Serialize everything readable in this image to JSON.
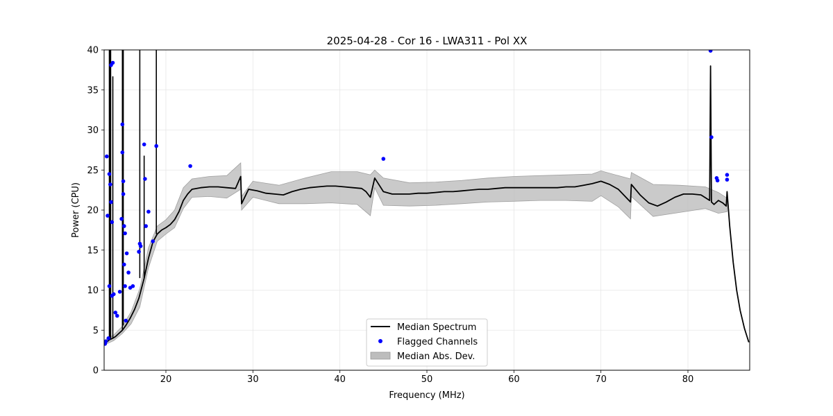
{
  "chart_data": {
    "type": "line",
    "title": "2025-04-28 - Cor 16 - LWA311 - Pol XX",
    "xlabel": "Frequency (MHz)",
    "ylabel": "Power (CPU)",
    "xlim": [
      12.9,
      87.1
    ],
    "ylim": [
      0,
      40
    ],
    "xticks": [
      20,
      30,
      40,
      50,
      60,
      70,
      80
    ],
    "yticks": [
      0,
      5,
      10,
      15,
      20,
      25,
      30,
      35,
      40
    ],
    "grid": true,
    "legend": {
      "placement": "lower-center",
      "entries": [
        {
          "label": "Median Spectrum",
          "kind": "line",
          "color": "#000000"
        },
        {
          "label": "Flagged Channels",
          "kind": "marker",
          "color": "#0000ff"
        },
        {
          "label": "Median Abs. Dev.",
          "kind": "patch",
          "color": "#bdbdbd"
        }
      ]
    },
    "series": [
      {
        "name": "Median Spectrum",
        "color": "#000000",
        "x": [
          13.0,
          13.3,
          13.5,
          13.7,
          13.9,
          14.2,
          14.6,
          15.0,
          15.4,
          15.9,
          16.4,
          16.9,
          17.5,
          18.0,
          18.5,
          19.0,
          19.5,
          20.0,
          20.5,
          21.0,
          21.5,
          22.0,
          22.5,
          23.0,
          24.0,
          25.0,
          26.0,
          27.0,
          28.0,
          28.6,
          28.7,
          29.5,
          30.5,
          31.5,
          32.5,
          33.5,
          34.5,
          35.5,
          36.5,
          37.5,
          38.5,
          39.5,
          40.5,
          41.5,
          42.5,
          43.0,
          43.5,
          44.0,
          45.0,
          46.0,
          47.0,
          48.0,
          49.0,
          50.0,
          51.0,
          52.0,
          53.0,
          54.0,
          55.0,
          56.0,
          57.0,
          58.0,
          59.0,
          60.0,
          61.0,
          62.0,
          63.0,
          64.0,
          65.0,
          66.0,
          67.0,
          68.0,
          69.0,
          70.0,
          71.0,
          72.0,
          73.4,
          73.5,
          74.5,
          75.5,
          76.5,
          77.5,
          78.5,
          79.5,
          80.5,
          81.5,
          82.5,
          82.6,
          82.7,
          83.0,
          83.5,
          84.0,
          84.4,
          84.5,
          84.8,
          85.2,
          85.6,
          86.0,
          86.5,
          87.0
        ],
        "y": [
          3.5,
          3.6,
          3.8,
          3.9,
          4.0,
          4.2,
          4.6,
          5.0,
          5.6,
          6.5,
          7.6,
          9.0,
          11.5,
          14.0,
          16.0,
          17.0,
          17.5,
          17.8,
          18.2,
          18.8,
          19.8,
          21.2,
          22.0,
          22.6,
          22.8,
          22.9,
          22.9,
          22.8,
          22.7,
          24.2,
          20.8,
          22.6,
          22.4,
          22.1,
          22.0,
          21.9,
          22.3,
          22.6,
          22.8,
          22.9,
          23.0,
          23.0,
          22.9,
          22.8,
          22.7,
          22.3,
          21.6,
          24.0,
          22.3,
          22.0,
          22.0,
          22.0,
          22.1,
          22.1,
          22.2,
          22.3,
          22.3,
          22.4,
          22.5,
          22.6,
          22.6,
          22.7,
          22.8,
          22.8,
          22.8,
          22.8,
          22.8,
          22.8,
          22.8,
          22.9,
          22.9,
          23.1,
          23.3,
          23.6,
          23.2,
          22.6,
          21.0,
          23.2,
          21.9,
          20.9,
          20.5,
          21.0,
          21.6,
          22.0,
          22.0,
          21.9,
          21.2,
          38.0,
          21.0,
          20.7,
          21.2,
          20.9,
          20.5,
          22.3,
          18.0,
          13.5,
          10.0,
          7.5,
          5.2,
          3.5
        ]
      },
      {
        "name": "Median Abs. Dev.",
        "type": "band",
        "color": "#bdbdbd",
        "x": [
          13.0,
          14.0,
          15.0,
          16.0,
          17.0,
          18.0,
          19.0,
          20.0,
          21.0,
          22.0,
          23.0,
          25.0,
          27.0,
          28.6,
          28.7,
          30.0,
          33.0,
          36.0,
          39.0,
          42.0,
          43.5,
          44.0,
          45.0,
          48.0,
          51.0,
          54.0,
          57.0,
          60.0,
          63.0,
          66.0,
          69.0,
          70.0,
          72.0,
          73.4,
          73.5,
          76.0,
          79.0,
          82.0,
          83.5,
          84.5
        ],
        "upper": [
          3.8,
          4.4,
          5.5,
          7.3,
          10.2,
          15.3,
          18.0,
          18.8,
          20.0,
          22.8,
          23.9,
          24.2,
          24.3,
          25.9,
          21.7,
          23.6,
          23.1,
          24.0,
          24.8,
          24.8,
          24.4,
          25.0,
          24.0,
          23.4,
          23.5,
          23.7,
          24.0,
          24.2,
          24.3,
          24.4,
          24.5,
          24.9,
          24.3,
          23.9,
          24.7,
          23.2,
          23.1,
          22.9,
          22.2,
          21.5
        ],
        "lower": [
          3.2,
          3.7,
          4.6,
          5.8,
          7.9,
          12.8,
          16.1,
          17.0,
          17.8,
          20.2,
          21.6,
          21.7,
          21.5,
          22.6,
          20.0,
          21.6,
          20.8,
          20.8,
          20.9,
          20.7,
          19.3,
          22.8,
          20.6,
          20.5,
          20.6,
          20.8,
          21.0,
          21.1,
          21.2,
          21.2,
          21.1,
          21.8,
          20.4,
          18.9,
          21.7,
          19.2,
          19.7,
          20.2,
          19.6,
          19.8
        ]
      },
      {
        "name": "Flagged Channels",
        "type": "scatter",
        "color": "#0000ff",
        "x": [
          13.0,
          13.1,
          13.2,
          13.3,
          13.4,
          13.5,
          13.5,
          13.6,
          13.7,
          13.7,
          13.8,
          13.8,
          13.9,
          14.0,
          14.2,
          14.4,
          14.7,
          14.9,
          15.0,
          15.0,
          15.1,
          15.1,
          15.2,
          15.2,
          15.3,
          15.3,
          15.4,
          15.5,
          15.7,
          15.9,
          16.2,
          16.9,
          17.0,
          17.1,
          17.5,
          17.6,
          17.7,
          18.0,
          18.5,
          18.9,
          22.8,
          45.0,
          82.6,
          82.7,
          83.3,
          83.4,
          84.5,
          84.5
        ],
        "y": [
          3.3,
          3.6,
          26.7,
          19.3,
          4.0,
          10.5,
          24.5,
          23.2,
          21.0,
          38.1,
          18.5,
          9.3,
          38.4,
          9.5,
          7.2,
          6.8,
          9.8,
          18.9,
          27.2,
          30.7,
          22.0,
          23.6,
          13.2,
          18.0,
          17.1,
          10.5,
          6.2,
          14.6,
          12.2,
          10.3,
          10.5,
          14.8,
          15.8,
          15.5,
          28.2,
          23.9,
          18.0,
          19.8,
          16.1,
          28.0,
          25.5,
          26.4,
          39.9,
          29.1,
          24.0,
          23.7,
          24.4,
          23.8
        ]
      },
      {
        "name": "RFI spikes",
        "type": "spikes",
        "color": "#000000",
        "x": [
          13.5,
          13.6,
          13.65,
          13.9,
          15.0,
          15.05,
          15.1,
          17.0,
          17.5,
          18.9
        ],
        "y": [
          40,
          40,
          40,
          36.7,
          40,
          40,
          40,
          40,
          26.8,
          40
        ]
      }
    ]
  }
}
